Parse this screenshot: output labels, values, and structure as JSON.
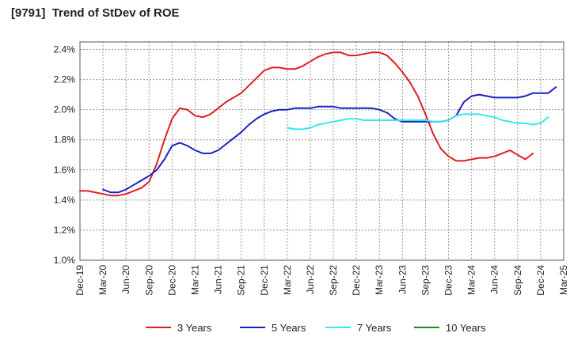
{
  "chart_data": {
    "type": "line",
    "title": "[9791]  Trend of StDev of ROE",
    "xlabel": "",
    "ylabel": "",
    "x_categories": [
      "Dec-19",
      "Mar-20",
      "Jun-20",
      "Sep-20",
      "Dec-20",
      "Mar-21",
      "Jun-21",
      "Sep-21",
      "Dec-21",
      "Mar-22",
      "Jun-22",
      "Sep-22",
      "Dec-22",
      "Mar-23",
      "Jun-23",
      "Sep-23",
      "Dec-23",
      "Mar-24",
      "Jun-24",
      "Sep-24",
      "Dec-24",
      "Mar-25"
    ],
    "y_ticks": [
      "1.0%",
      "1.2%",
      "1.4%",
      "1.6%",
      "1.8%",
      "2.0%",
      "2.2%",
      "2.4%"
    ],
    "ylim": [
      1.0,
      2.45
    ],
    "y_unit": "%",
    "grid": true,
    "legend_position": "bottom",
    "colors": {
      "3 Years": "#dd1f1f",
      "5 Years": "#1a22c2",
      "7 Years": "#33e8ee",
      "10 Years": "#238a23",
      "axis": "#555555",
      "grid": "#999999"
    },
    "series": [
      {
        "name": "3 Years",
        "start_index": 0,
        "values": [
          1.46,
          1.46,
          1.45,
          1.44,
          1.43,
          1.43,
          1.44,
          1.46,
          1.48,
          1.52,
          1.64,
          1.8,
          1.94,
          2.01,
          2.0,
          1.96,
          1.95,
          1.97,
          2.01,
          2.05,
          2.08,
          2.11,
          2.16,
          2.21,
          2.26,
          2.28,
          2.28,
          2.27,
          2.27,
          2.29,
          2.32,
          2.35,
          2.37,
          2.38,
          2.38,
          2.36,
          2.36,
          2.37,
          2.38,
          2.38,
          2.36,
          2.31,
          2.25,
          2.18,
          2.09,
          1.97,
          1.84,
          1.74,
          1.69,
          1.66,
          1.66,
          1.67,
          1.68,
          1.68,
          1.69,
          1.71,
          1.73,
          1.7,
          1.67,
          1.71
        ]
      },
      {
        "name": "5 Years",
        "start_index": 3,
        "values": [
          1.47,
          1.45,
          1.45,
          1.47,
          1.5,
          1.53,
          1.56,
          1.6,
          1.67,
          1.76,
          1.78,
          1.76,
          1.73,
          1.71,
          1.71,
          1.73,
          1.77,
          1.81,
          1.85,
          1.9,
          1.94,
          1.97,
          1.99,
          2.0,
          2.0,
          2.01,
          2.01,
          2.01,
          2.02,
          2.02,
          2.02,
          2.01,
          2.01,
          2.01,
          2.01,
          2.01,
          2.0,
          1.98,
          1.94,
          1.92,
          1.92,
          1.92,
          1.92,
          1.92,
          1.92,
          1.93,
          1.96,
          2.05,
          2.09,
          2.1,
          2.09,
          2.08,
          2.08,
          2.08,
          2.08,
          2.09,
          2.11,
          2.11,
          2.11,
          2.15
        ]
      },
      {
        "name": "7 Years",
        "start_index": 27,
        "values": [
          1.88,
          1.87,
          1.87,
          1.88,
          1.9,
          1.91,
          1.92,
          1.93,
          1.94,
          1.94,
          1.93,
          1.93,
          1.93,
          1.93,
          1.93,
          1.93,
          1.93,
          1.93,
          1.93,
          1.92,
          1.92,
          1.93,
          1.96,
          1.97,
          1.97,
          1.97,
          1.96,
          1.95,
          1.93,
          1.92,
          1.91,
          1.91,
          1.9,
          1.91,
          1.95
        ]
      },
      {
        "name": "10 Years",
        "start_index": 0,
        "values": []
      }
    ]
  }
}
